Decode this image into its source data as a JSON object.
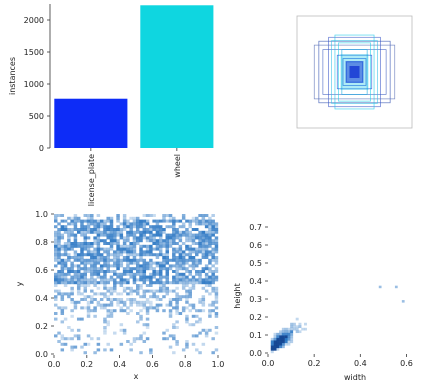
{
  "chart_data": [
    {
      "type": "bar",
      "categories": [
        "license_plate",
        "wheel"
      ],
      "values": [
        770,
        2230
      ],
      "colors": [
        "#0d2cf7",
        "#0fd6e0"
      ],
      "ylabel": "instances",
      "ylim": [
        0,
        2250
      ],
      "yticks": [
        0,
        500,
        1000,
        1500,
        2000
      ]
    },
    {
      "type": "box-overlay",
      "description_colors": [
        "#1a3fd6",
        "#18c7e6"
      ],
      "boxes_center_x": 0.5,
      "boxes_center_y": 0.5,
      "boxes": [
        {
          "w": 0.62,
          "h": 0.55,
          "c": "#3050b0"
        },
        {
          "w": 0.55,
          "h": 0.4,
          "c": "#4060c0"
        },
        {
          "w": 0.45,
          "h": 0.62,
          "c": "#3a58c8"
        },
        {
          "w": 0.7,
          "h": 0.48,
          "c": "#5a70b8"
        },
        {
          "w": 0.34,
          "h": 0.66,
          "c": "#1ec8e8"
        },
        {
          "w": 0.4,
          "h": 0.56,
          "c": "#35c0e6"
        },
        {
          "w": 0.28,
          "h": 0.52,
          "c": "#20d0e8"
        },
        {
          "w": 0.22,
          "h": 0.4,
          "c": "#12a8e0"
        },
        {
          "w": 0.3,
          "h": 0.3,
          "c": "#1550d8"
        },
        {
          "w": 0.2,
          "h": 0.24,
          "c": "#0a3ad8"
        },
        {
          "w": 0.14,
          "h": 0.18,
          "c": "#1846e0"
        }
      ]
    },
    {
      "type": "heatmap",
      "xlabel": "x",
      "ylabel": "y",
      "xlim": [
        0,
        1
      ],
      "ylim": [
        0,
        1
      ],
      "xticks": [
        0.0,
        0.2,
        0.4,
        0.6,
        0.8,
        1.0
      ],
      "yticks": [
        0.0,
        0.2,
        0.4,
        0.6,
        0.8,
        1.0
      ],
      "xtick_labels": [
        "0.0",
        "0.2",
        "0.4",
        "0.6",
        "0.8",
        "1.0"
      ],
      "ytick_labels": [
        "0.0",
        "0.2",
        "0.4",
        "0.6",
        "0.8",
        "1.0"
      ],
      "bins": 50,
      "dense_y_range": [
        0.5,
        0.95
      ],
      "color": "#1f6fc0"
    },
    {
      "type": "heatmap",
      "xlabel": "width",
      "ylabel": "height",
      "xlim": [
        0,
        0.65
      ],
      "ylim": [
        0,
        0.75
      ],
      "xticks": [
        0.0,
        0.2,
        0.4,
        0.6
      ],
      "yticks": [
        0.0,
        0.1,
        0.2,
        0.3,
        0.4,
        0.5,
        0.6,
        0.7
      ],
      "xtick_labels": [
        "0.0",
        "0.2",
        "0.4",
        "0.6"
      ],
      "ytick_labels": [
        "0.0",
        "0.1",
        "0.2",
        "0.3",
        "0.4",
        "0.5",
        "0.6",
        "0.7"
      ],
      "outliers": [
        [
          0.48,
          0.36
        ],
        [
          0.55,
          0.36
        ],
        [
          0.58,
          0.28
        ]
      ],
      "color": "#1f6fc0"
    }
  ]
}
